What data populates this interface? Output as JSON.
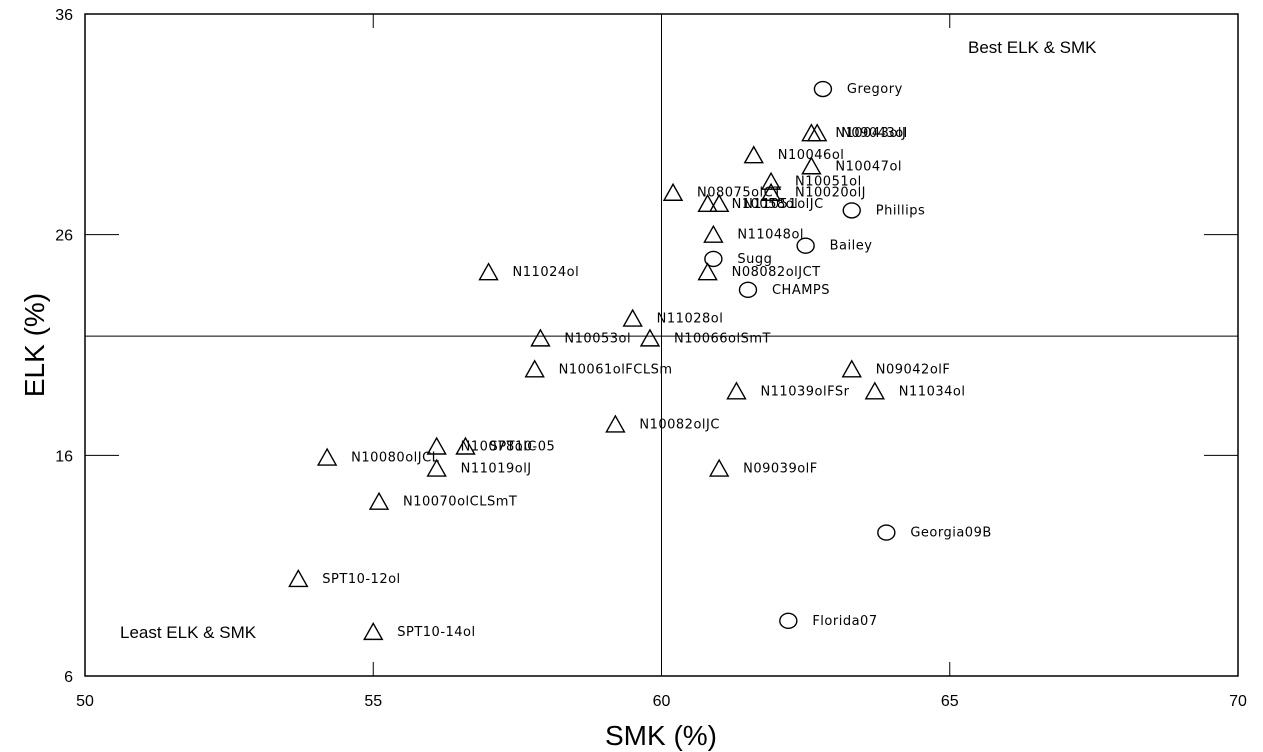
{
  "chart_data": {
    "type": "scatter",
    "title": "",
    "xlabel": "SMK (%)",
    "ylabel": "ELK (%)",
    "xlim": [
      50,
      70
    ],
    "ylim": [
      6,
      36
    ],
    "xticks": [
      "50",
      "55",
      "60",
      "65",
      "70"
    ],
    "yticks": [
      "6",
      "16",
      "26",
      "36"
    ],
    "reference_lines": {
      "x": 60,
      "y": 21.4
    },
    "annotations": {
      "best": "Best ELK & SMK",
      "least": "Least ELK & SMK"
    },
    "grid": false,
    "series": [
      {
        "marker": "circle",
        "points": [
          {
            "label": "Gregory",
            "x": 62.8,
            "y": 32.6
          },
          {
            "label": "Phillips",
            "x": 63.3,
            "y": 27.1
          },
          {
            "label": "Bailey",
            "x": 62.5,
            "y": 25.5
          },
          {
            "label": "Sugg",
            "x": 60.9,
            "y": 24.9
          },
          {
            "label": "CHAMPS",
            "x": 61.5,
            "y": 23.5
          },
          {
            "label": "Georgia09B",
            "x": 63.9,
            "y": 12.5
          },
          {
            "label": "Florida07",
            "x": 62.2,
            "y": 8.5
          }
        ]
      },
      {
        "marker": "triangle",
        "points": [
          {
            "label": "N10043olJ",
            "x": 62.6,
            "y": 30.6
          },
          {
            "label": "N09043ol",
            "x": 62.7,
            "y": 30.6
          },
          {
            "label": "N10046ol",
            "x": 61.6,
            "y": 29.6
          },
          {
            "label": "N10047ol",
            "x": 62.6,
            "y": 29.1
          },
          {
            "label": "N10051ol",
            "x": 61.9,
            "y": 28.4
          },
          {
            "label": "N08075olCT",
            "x": 60.2,
            "y": 27.9
          },
          {
            "label": "N10020olJ",
            "x": 61.9,
            "y": 27.9
          },
          {
            "label": "N10058ol",
            "x": 60.8,
            "y": 27.4
          },
          {
            "label": "N11051olJC",
            "x": 61.0,
            "y": 27.4
          },
          {
            "label": "N11048ol",
            "x": 60.9,
            "y": 26.0
          },
          {
            "label": "N08082olJCT",
            "x": 60.8,
            "y": 24.3
          },
          {
            "label": "N11024ol",
            "x": 57.0,
            "y": 24.3
          },
          {
            "label": "N11028ol",
            "x": 59.5,
            "y": 22.2
          },
          {
            "label": "N10053ol",
            "x": 57.9,
            "y": 21.3
          },
          {
            "label": "N10066olSmT",
            "x": 59.8,
            "y": 21.3
          },
          {
            "label": "N10061olFCLSm",
            "x": 57.8,
            "y": 19.9
          },
          {
            "label": "N09042olF",
            "x": 63.3,
            "y": 19.9
          },
          {
            "label": "N11039olFSr",
            "x": 61.3,
            "y": 18.9
          },
          {
            "label": "N11034ol",
            "x": 63.7,
            "y": 18.9
          },
          {
            "label": "N10082olJC",
            "x": 59.2,
            "y": 17.4
          },
          {
            "label": "N10078olC",
            "x": 56.1,
            "y": 16.4
          },
          {
            "label": "SPT10-05",
            "x": 56.6,
            "y": 16.4
          },
          {
            "label": "N10080olJCL",
            "x": 54.2,
            "y": 15.9
          },
          {
            "label": "N11019olJ",
            "x": 56.1,
            "y": 15.4
          },
          {
            "label": "N09039olF",
            "x": 61.0,
            "y": 15.4
          },
          {
            "label": "N10070olCLSmT",
            "x": 55.1,
            "y": 13.9
          },
          {
            "label": "SPT10-12ol",
            "x": 53.7,
            "y": 10.4
          },
          {
            "label": "SPT10-14ol",
            "x": 55.0,
            "y": 8.0
          }
        ]
      }
    ]
  }
}
